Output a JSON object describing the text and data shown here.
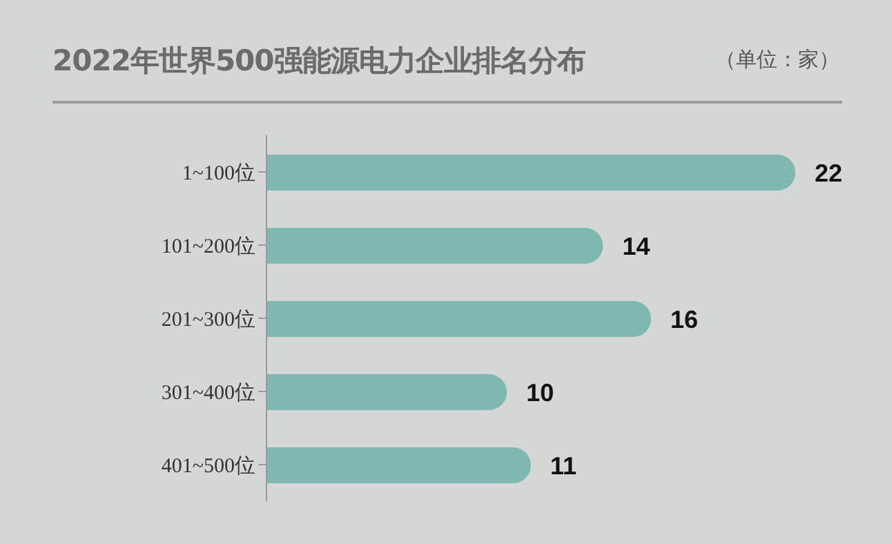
{
  "chart_data": {
    "type": "bar",
    "orientation": "horizontal",
    "title": "2022年世界500强能源电力企业排名分布",
    "annotations": [
      "（单位：家）"
    ],
    "categories": [
      "1~100位",
      "101~200位",
      "201~300位",
      "301~400位",
      "401~500位"
    ],
    "values": [
      22,
      14,
      16,
      10,
      11
    ],
    "color": "#7fb8b0",
    "data_labels": true,
    "tick_labels": "y"
  }
}
